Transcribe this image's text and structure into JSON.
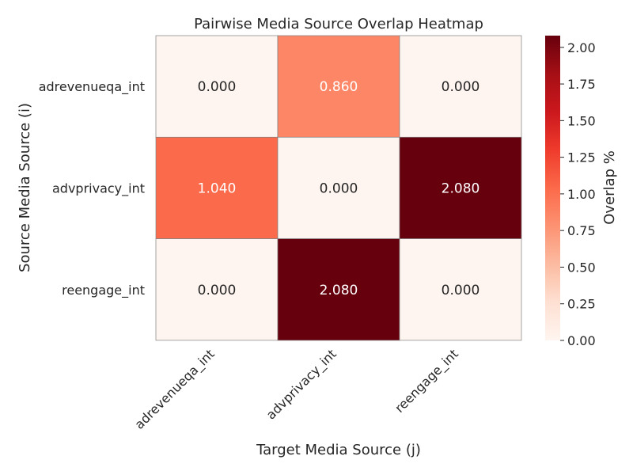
{
  "chart_data": {
    "type": "heatmap",
    "title": "Pairwise Media Source Overlap Heatmap",
    "xlabel": "Target Media Source (j)",
    "ylabel": "Source Media Source (i)",
    "x_categories": [
      "adrevenueqa_int",
      "advprivacy_int",
      "reengage_int"
    ],
    "y_categories": [
      "adrevenueqa_int",
      "advprivacy_int",
      "reengage_int"
    ],
    "values": [
      [
        0.0,
        0.86,
        0.0
      ],
      [
        1.04,
        0.0,
        2.08
      ],
      [
        0.0,
        2.08,
        0.0
      ]
    ],
    "annotations": [
      [
        "0.000",
        "0.860",
        "0.000"
      ],
      [
        "1.040",
        "0.000",
        "2.080"
      ],
      [
        "0.000",
        "2.080",
        "0.000"
      ]
    ],
    "colorbar": {
      "label": "Overlap %",
      "range": [
        0.0,
        2.08
      ],
      "ticks": [
        "0.00",
        "0.25",
        "0.50",
        "0.75",
        "1.00",
        "1.25",
        "1.50",
        "1.75",
        "2.00"
      ],
      "colormap": "Reds"
    }
  }
}
